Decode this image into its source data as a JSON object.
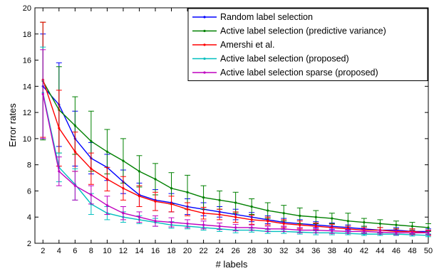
{
  "chart_data": {
    "type": "line",
    "xlabel": "# labels",
    "ylabel": "Error rates",
    "xlim": [
      1,
      50
    ],
    "ylim": [
      2,
      20
    ],
    "x": [
      2,
      4,
      6,
      8,
      10,
      12,
      14,
      16,
      18,
      20,
      22,
      24,
      26,
      28,
      30,
      32,
      34,
      36,
      38,
      40,
      42,
      44,
      46,
      48,
      50
    ],
    "xticks": [
      2,
      4,
      6,
      8,
      10,
      12,
      14,
      16,
      18,
      20,
      22,
      24,
      26,
      28,
      30,
      32,
      34,
      36,
      38,
      40,
      42,
      44,
      46,
      48,
      50
    ],
    "yticks": [
      2,
      4,
      6,
      8,
      10,
      12,
      14,
      16,
      18,
      20
    ],
    "grid": false,
    "legend_position": "top-right",
    "error_bars": true,
    "series": [
      {
        "name": "Random label selection",
        "color": "#0000ff",
        "values": [
          14.0,
          12.6,
          10.0,
          8.5,
          7.8,
          6.7,
          5.7,
          5.3,
          5.1,
          4.8,
          4.6,
          4.4,
          4.2,
          4.0,
          3.8,
          3.6,
          3.5,
          3.4,
          3.3,
          3.2,
          3.1,
          3.0,
          3.0,
          2.9,
          2.9
        ],
        "errors": [
          4.0,
          3.2,
          2.1,
          1.2,
          1.0,
          0.9,
          0.9,
          0.8,
          0.7,
          0.6,
          0.5,
          0.4,
          0.4,
          0.35,
          0.3,
          0.3,
          0.3,
          0.25,
          0.25,
          0.2,
          0.2,
          0.2,
          0.2,
          0.2,
          0.2
        ]
      },
      {
        "name": "Active label selection (predictive variance)",
        "color": "#008000",
        "values": [
          14.4,
          12.2,
          11.0,
          9.8,
          9.0,
          8.3,
          7.5,
          6.9,
          6.2,
          5.9,
          5.5,
          5.3,
          5.1,
          4.8,
          4.5,
          4.3,
          4.1,
          4.0,
          3.9,
          3.7,
          3.6,
          3.5,
          3.4,
          3.3,
          3.2
        ],
        "errors": [
          4.5,
          3.3,
          2.2,
          2.3,
          1.7,
          1.7,
          1.2,
          1.2,
          1.2,
          1.3,
          0.9,
          0.7,
          0.8,
          0.6,
          0.6,
          0.6,
          0.6,
          0.5,
          0.4,
          0.6,
          0.3,
          0.3,
          0.3,
          0.3,
          0.3
        ]
      },
      {
        "name": "Amershi et al.",
        "color": "#ff0000",
        "values": [
          14.5,
          10.8,
          9.0,
          7.7,
          6.9,
          6.2,
          5.6,
          5.2,
          5.0,
          4.6,
          4.3,
          4.2,
          4.0,
          3.8,
          3.7,
          3.5,
          3.4,
          3.3,
          3.2,
          3.1,
          3.0,
          3.0,
          2.9,
          2.9,
          2.8
        ],
        "errors": [
          4.4,
          2.9,
          1.5,
          1.2,
          0.9,
          0.9,
          0.8,
          0.7,
          0.6,
          0.5,
          0.45,
          0.4,
          0.4,
          0.35,
          0.3,
          0.3,
          0.3,
          0.25,
          0.25,
          0.2,
          0.2,
          0.2,
          0.2,
          0.2,
          0.2
        ]
      },
      {
        "name": "Active label selection (proposed)",
        "color": "#00bfbf",
        "values": [
          13.5,
          7.8,
          6.5,
          5.0,
          4.3,
          4.0,
          3.8,
          3.6,
          3.4,
          3.3,
          3.2,
          3.1,
          3.0,
          3.0,
          2.9,
          2.9,
          2.85,
          2.8,
          2.8,
          2.75,
          2.7,
          2.7,
          2.7,
          2.65,
          2.6
        ],
        "errors": [
          3.5,
          1.1,
          1.2,
          0.8,
          0.5,
          0.4,
          0.3,
          0.3,
          0.25,
          0.2,
          0.2,
          0.2,
          0.2,
          0.15,
          0.15,
          0.15,
          0.15,
          0.15,
          0.15,
          0.1,
          0.1,
          0.1,
          0.1,
          0.1,
          0.1
        ]
      },
      {
        "name": "Active label selection sparse (proposed)",
        "color": "#bf00bf",
        "values": [
          13.4,
          7.5,
          6.4,
          5.7,
          4.9,
          4.3,
          4.0,
          3.7,
          3.6,
          3.5,
          3.4,
          3.3,
          3.2,
          3.2,
          3.1,
          3.1,
          3.0,
          3.0,
          2.95,
          2.9,
          2.9,
          2.85,
          2.8,
          2.8,
          2.8
        ],
        "errors": [
          3.4,
          1.1,
          1.1,
          0.7,
          0.7,
          0.5,
          0.4,
          0.4,
          0.35,
          0.3,
          0.3,
          0.25,
          0.25,
          0.2,
          0.2,
          0.2,
          0.2,
          0.2,
          0.2,
          0.15,
          0.15,
          0.15,
          0.15,
          0.15,
          0.15
        ]
      }
    ]
  }
}
